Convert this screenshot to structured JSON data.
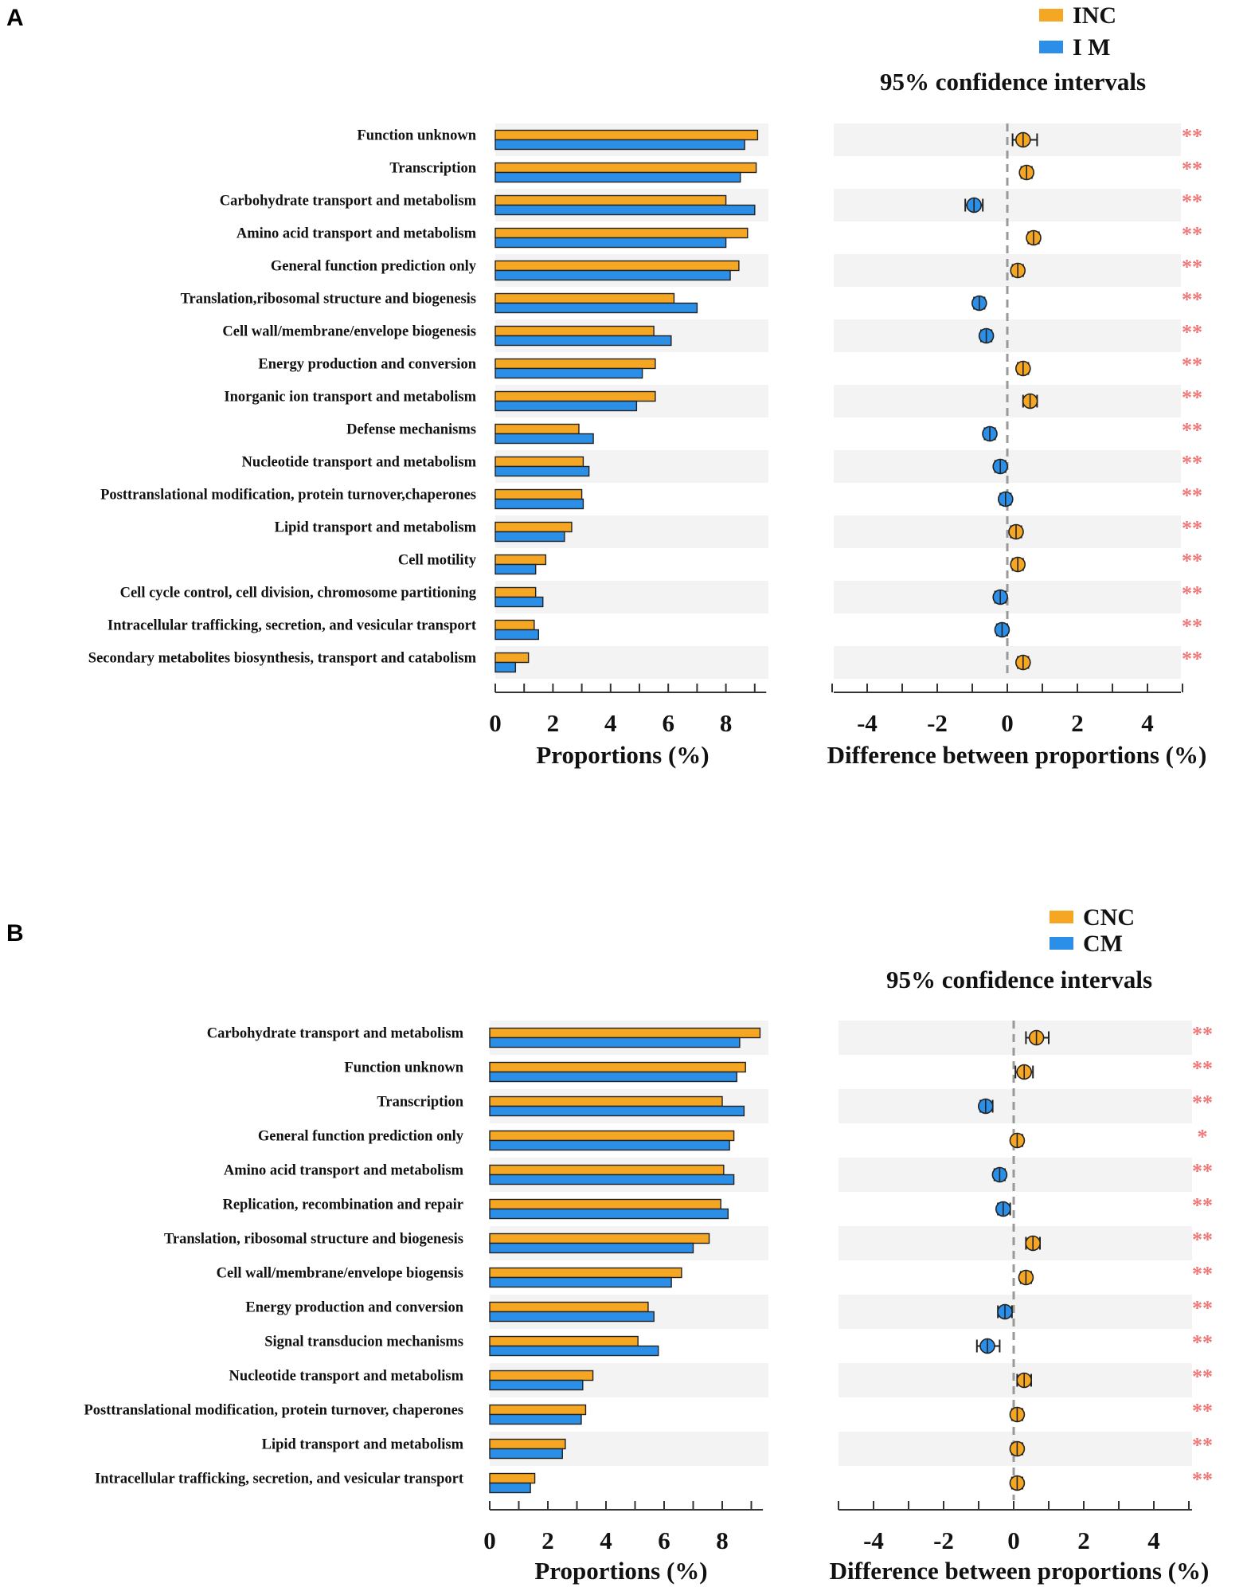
{
  "chart_data": [
    {
      "panel_label": "A",
      "type": "bar",
      "legend": [
        {
          "name": "INC",
          "color": "#F5A623"
        },
        {
          "name": "I M",
          "color": "#2B8FE8"
        }
      ],
      "ci_title": "95% confidence intervals",
      "xlabel_left": "Proportions (%)",
      "xlabel_right": "Difference between proportions (%)",
      "left_ticks": [
        "0",
        "2",
        "4",
        "6",
        "8"
      ],
      "right_ticks": [
        "-4",
        "-2",
        "0",
        "2",
        "4"
      ],
      "xlim_left": [
        0,
        9.4
      ],
      "xlim_right": [
        -5,
        5
      ],
      "categories": [
        "Function unknown",
        "Transcription",
        "Carbohydrate transport and metabolism",
        "Amino acid transport and metabolism",
        "General function prediction only",
        "Translation,ribosomal structure and biogenesis",
        "Cell wall/membrane/envelope biogenesis",
        "Energy production and conversion",
        "Inorganic ion transport and metabolism",
        "Defense mechanisms",
        "Nucleotide transport and metabolism",
        "Posttranslational modification, protein turnover,chaperones",
        "Lipid transport and metabolism",
        "Cell motility",
        "Cell cycle control, cell division, chromosome partitioning",
        "Intracellular trafficking, secretion, and vesicular transport",
        "Secondary metabolites biosynthesis, transport and catabolism"
      ],
      "series": [
        {
          "name": "INC",
          "values": [
            9.1,
            9.05,
            8.0,
            8.75,
            8.45,
            6.2,
            5.5,
            5.55,
            5.55,
            2.9,
            3.05,
            3.0,
            2.65,
            1.75,
            1.4,
            1.35,
            1.15
          ]
        },
        {
          "name": "I M",
          "values": [
            8.65,
            8.5,
            9.0,
            8.0,
            8.15,
            7.0,
            6.1,
            5.1,
            4.9,
            3.4,
            3.25,
            3.05,
            2.4,
            1.4,
            1.65,
            1.5,
            0.7
          ]
        }
      ],
      "differences": [
        0.45,
        0.55,
        -0.95,
        0.75,
        0.3,
        -0.8,
        -0.6,
        0.45,
        0.65,
        -0.5,
        -0.2,
        -0.05,
        0.25,
        0.3,
        -0.2,
        -0.15,
        0.45
      ],
      "ci_low": [
        0.15,
        0.4,
        -1.2,
        0.6,
        0.15,
        -0.95,
        -0.75,
        0.3,
        0.45,
        -0.65,
        -0.35,
        -0.2,
        0.1,
        0.15,
        -0.35,
        -0.3,
        0.3
      ],
      "ci_high": [
        0.85,
        0.7,
        -0.7,
        0.9,
        0.45,
        -0.65,
        -0.45,
        0.6,
        0.85,
        -0.35,
        -0.05,
        0.1,
        0.4,
        0.45,
        -0.05,
        0.0,
        0.6
      ],
      "significance": [
        "**",
        "**",
        "**",
        "**",
        "**",
        "**",
        "**",
        "**",
        "**",
        "**",
        "**",
        "**",
        "**",
        "**",
        "**",
        "**",
        "**"
      ]
    },
    {
      "panel_label": "B",
      "type": "bar",
      "legend": [
        {
          "name": "CNC",
          "color": "#F5A623"
        },
        {
          "name": "CM",
          "color": "#2B8FE8"
        }
      ],
      "ci_title": "95% confidence intervals",
      "xlabel_left": "Proportions (%)",
      "xlabel_right": "Difference between proportions (%)",
      "left_ticks": [
        "0",
        "2",
        "4",
        "6",
        "8"
      ],
      "right_ticks": [
        "-4",
        "-2",
        "0",
        "2",
        "4"
      ],
      "xlim_left": [
        0,
        9.4
      ],
      "xlim_right": [
        -5,
        5
      ],
      "categories": [
        "Carbohydrate transport and metabolism",
        "Function unknown",
        "Transcription",
        "General function prediction only",
        "Amino acid transport and metabolism",
        "Replication, recombination and repair",
        "Translation, ribosomal structure and biogenesis",
        "Cell wall/membrane/envelope biogensis",
        "Energy production and conversion",
        "Signal transducion mechanisms",
        "Nucleotide transport and metabolism",
        "Posttranslational modification, protein turnover, chaperones",
        "Lipid transport and metabolism",
        "Intracellular trafficking, secretion, and vesicular transport"
      ],
      "series": [
        {
          "name": "CNC",
          "values": [
            9.3,
            8.8,
            8.0,
            8.4,
            8.05,
            7.95,
            7.55,
            6.6,
            5.45,
            5.1,
            3.55,
            3.3,
            2.6,
            1.55
          ]
        },
        {
          "name": "CM",
          "values": [
            8.6,
            8.5,
            8.75,
            8.25,
            8.4,
            8.2,
            7.0,
            6.25,
            5.65,
            5.8,
            3.2,
            3.15,
            2.5,
            1.4
          ]
        }
      ],
      "differences": [
        0.65,
        0.3,
        -0.8,
        0.1,
        -0.4,
        -0.3,
        0.55,
        0.35,
        -0.25,
        -0.75,
        0.3,
        0.1,
        0.1,
        0.1
      ],
      "ci_low": [
        0.35,
        0.05,
        -0.95,
        0.0,
        -0.55,
        -0.45,
        0.35,
        0.2,
        -0.45,
        -1.05,
        0.1,
        -0.05,
        -0.05,
        -0.05
      ],
      "ci_high": [
        1.0,
        0.55,
        -0.6,
        0.25,
        -0.25,
        -0.1,
        0.75,
        0.5,
        -0.05,
        -0.4,
        0.5,
        0.25,
        0.25,
        0.25
      ],
      "significance": [
        "**",
        "**",
        "**",
        "*",
        "**",
        "**",
        "**",
        "**",
        "**",
        "**",
        "**",
        "**",
        "**",
        "**"
      ]
    }
  ],
  "colors": {
    "first_series": "#F5A623",
    "second_series": "#2B8FE8",
    "stripe": "#F3F3F3",
    "significance": "#F07777",
    "zero_line": "#999999",
    "axis": "#333333"
  }
}
